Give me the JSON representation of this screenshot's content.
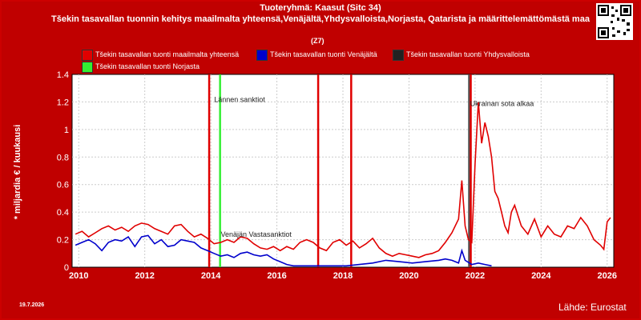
{
  "header": {
    "title": "Tuoteryhmä: Kaasut (Sitc 34)",
    "subtitle": "Tšekin tasavallan tuonnin kehitys maailmalta yhteensä,Venäjältä,Yhdysvalloista,Norjasta, Qatarista ja määrittelemättömästä maa",
    "subtitle_tail": "(Z7)"
  },
  "footer": {
    "date": "19.7.2026",
    "source": "Lähde: Eurostat"
  },
  "qr_icon": "qr-code-icon",
  "colors": {
    "background": "#c00000",
    "plot": "#ffffff",
    "world": "#e00000",
    "russia": "#0000cc",
    "usa": "#222222",
    "norway": "#33ee33"
  },
  "chart_data": {
    "type": "line",
    "title": "Tuoteryhmä: Kaasut (Sitc 34)",
    "xlabel": "",
    "ylabel": "* miljardia € / kuukausi",
    "xlim": [
      2009.8,
      2026.2
    ],
    "ylim": [
      0,
      1.4
    ],
    "x_ticks": [
      2010,
      2012,
      2014,
      2016,
      2018,
      2020,
      2022,
      2024,
      2026
    ],
    "y_ticks": [
      0,
      0.2,
      0.4,
      0.6,
      0.8,
      1,
      1.2,
      1.4
    ],
    "y_tick_labels": [
      "0",
      "0.2",
      "0.4",
      "0.6",
      "0.8",
      "1",
      "1.2",
      "1.4"
    ],
    "grid": true,
    "legend_position": "top",
    "series": [
      {
        "name": "Tšekin tasavallan tuonti maailmalta yhteensä",
        "color": "#e00000",
        "x": [
          2009.9,
          2010.1,
          2010.3,
          2010.5,
          2010.7,
          2010.9,
          2011.1,
          2011.3,
          2011.5,
          2011.7,
          2011.9,
          2012.1,
          2012.3,
          2012.5,
          2012.7,
          2012.9,
          2013.1,
          2013.3,
          2013.5,
          2013.7,
          2013.9,
          2014.1,
          2014.3,
          2014.5,
          2014.7,
          2014.9,
          2015.1,
          2015.3,
          2015.5,
          2015.7,
          2015.9,
          2016.1,
          2016.3,
          2016.5,
          2016.7,
          2016.9,
          2017.1,
          2017.3,
          2017.5,
          2017.7,
          2017.9,
          2018.1,
          2018.3,
          2018.5,
          2018.7,
          2018.9,
          2019.1,
          2019.3,
          2019.5,
          2019.7,
          2019.9,
          2020.1,
          2020.3,
          2020.5,
          2020.7,
          2020.9,
          2021.1,
          2021.3,
          2021.5,
          2021.6,
          2021.7,
          2021.8,
          2021.9,
          2022.0,
          2022.1,
          2022.2,
          2022.3,
          2022.4,
          2022.5,
          2022.6,
          2022.7,
          2022.8,
          2022.9,
          2023.0,
          2023.1,
          2023.2,
          2023.4,
          2023.6,
          2023.8,
          2024.0,
          2024.2,
          2024.4,
          2024.6,
          2024.8,
          2025.0,
          2025.2,
          2025.4,
          2025.6,
          2025.8,
          2025.9,
          2026.0,
          2026.1
        ],
        "y": [
          0.24,
          0.26,
          0.22,
          0.25,
          0.28,
          0.3,
          0.27,
          0.29,
          0.26,
          0.3,
          0.32,
          0.31,
          0.28,
          0.26,
          0.24,
          0.3,
          0.31,
          0.26,
          0.22,
          0.24,
          0.21,
          0.17,
          0.18,
          0.2,
          0.18,
          0.22,
          0.21,
          0.17,
          0.14,
          0.13,
          0.15,
          0.12,
          0.15,
          0.13,
          0.18,
          0.2,
          0.18,
          0.14,
          0.12,
          0.18,
          0.2,
          0.16,
          0.19,
          0.14,
          0.17,
          0.21,
          0.14,
          0.1,
          0.08,
          0.1,
          0.09,
          0.08,
          0.07,
          0.09,
          0.1,
          0.12,
          0.18,
          0.25,
          0.35,
          0.63,
          0.3,
          0.2,
          0.18,
          0.75,
          1.2,
          0.9,
          1.05,
          0.95,
          0.8,
          0.55,
          0.5,
          0.4,
          0.3,
          0.25,
          0.4,
          0.45,
          0.3,
          0.24,
          0.35,
          0.22,
          0.3,
          0.24,
          0.22,
          0.3,
          0.28,
          0.36,
          0.3,
          0.2,
          0.16,
          0.13,
          0.33,
          0.36
        ]
      },
      {
        "name": "Tšekin tasavallan tuonti Venäjältä",
        "color": "#0000cc",
        "x": [
          2009.9,
          2010.1,
          2010.3,
          2010.5,
          2010.7,
          2010.9,
          2011.1,
          2011.3,
          2011.5,
          2011.7,
          2011.9,
          2012.1,
          2012.3,
          2012.5,
          2012.7,
          2012.9,
          2013.1,
          2013.3,
          2013.5,
          2013.7,
          2013.9,
          2014.1,
          2014.3,
          2014.5,
          2014.7,
          2014.9,
          2015.1,
          2015.3,
          2015.5,
          2015.7,
          2015.9,
          2016.1,
          2016.3,
          2016.5,
          2016.7,
          2016.9,
          2017.3,
          2017.7,
          2018.1,
          2018.5,
          2018.9,
          2019.3,
          2019.7,
          2020.1,
          2020.5,
          2020.9,
          2021.1,
          2021.3,
          2021.5,
          2021.6,
          2021.7,
          2021.9,
          2022.1,
          2022.3,
          2022.5
        ],
        "y": [
          0.16,
          0.18,
          0.2,
          0.17,
          0.12,
          0.18,
          0.2,
          0.19,
          0.22,
          0.15,
          0.22,
          0.23,
          0.17,
          0.2,
          0.15,
          0.16,
          0.2,
          0.19,
          0.18,
          0.14,
          0.12,
          0.1,
          0.08,
          0.09,
          0.07,
          0.1,
          0.11,
          0.09,
          0.08,
          0.09,
          0.06,
          0.04,
          0.02,
          0.01,
          0.01,
          0.01,
          0.01,
          0.01,
          0.01,
          0.02,
          0.03,
          0.05,
          0.04,
          0.03,
          0.04,
          0.05,
          0.06,
          0.05,
          0.03,
          0.12,
          0.05,
          0.02,
          0.03,
          0.02,
          0.01
        ]
      }
    ],
    "legend_extra": [
      {
        "name": "Tšekin tasavallan tuonti Yhdysvalloista",
        "color": "#222222"
      },
      {
        "name": "Tšekin tasavallan tuonti Norjasta",
        "color": "#33ee33"
      }
    ],
    "event_lines": [
      {
        "x": 2013.95,
        "color": "#e00000",
        "label": ""
      },
      {
        "x": 2014.28,
        "color": "#33ee33",
        "label": ""
      },
      {
        "x": 2017.25,
        "color": "#e00000",
        "label": ""
      },
      {
        "x": 2018.25,
        "color": "#e00000",
        "label": ""
      },
      {
        "x": 2021.82,
        "color": "#555555",
        "label": ""
      },
      {
        "x": 2021.87,
        "color": "#e00000",
        "label": ""
      }
    ],
    "annotations": [
      {
        "text": "Lännen sanktiot",
        "x": 2014.1,
        "y": 1.2
      },
      {
        "text": "Venäjän Vastasanktiot",
        "x": 2014.3,
        "y": 0.22
      },
      {
        "text": "Ukrainan sota alkaa",
        "x": 2021.85,
        "y": 1.17
      }
    ]
  }
}
